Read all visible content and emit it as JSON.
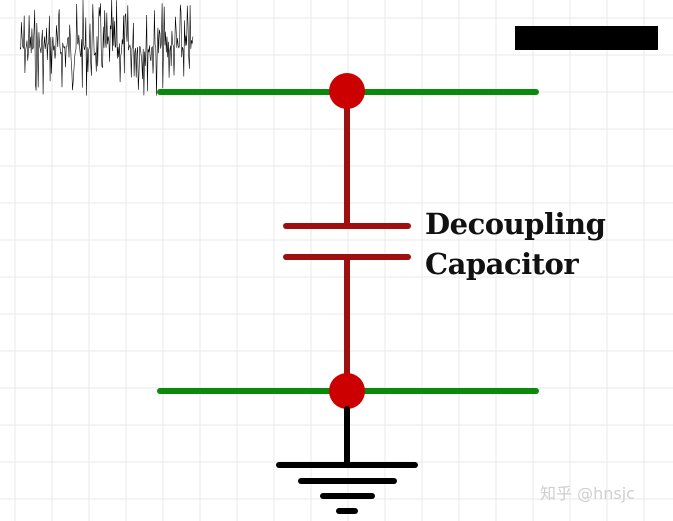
{
  "diagram": {
    "label_line1": "Decoupling",
    "label_line2": "Capacitor",
    "watermark": "知乎 @hnsjc",
    "colors": {
      "power_rail": "#0a8a0a",
      "node": "#cc0000",
      "capacitor": "#a00f0f",
      "ground": "#000000",
      "grid": "#e8e8e8",
      "noise": "#000000"
    },
    "icons": [
      "noise-waveform-icon",
      "ground-symbol-icon",
      "redacted-bar"
    ]
  }
}
